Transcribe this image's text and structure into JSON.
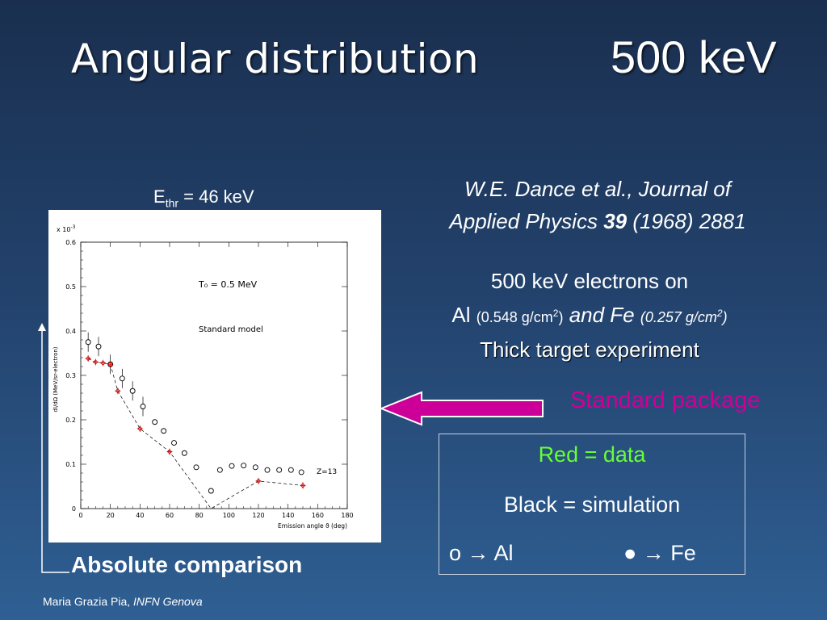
{
  "slide": {
    "title": "Angular distribution",
    "energy": "500 keV",
    "ethr_main": "E",
    "ethr_sub": "thr",
    "ethr_value": " = 46 keV",
    "ref_line1": "W.E. Dance et al., Journal of",
    "ref_line2_a": "Applied Physics ",
    "ref_line2_b": "39",
    "ref_line2_c": " (1968) 2881",
    "desc_line1": "500 keV electrons on",
    "desc_al": "Al ",
    "desc_al_density_a": "(0.548 g/cm",
    "desc_al_density_sup": "2",
    "desc_al_density_b": ")",
    "desc_and": " and Fe ",
    "desc_fe_density_a": "(0.257 g/cm",
    "desc_fe_density_sup": "2",
    "desc_fe_density_b": ")",
    "desc_line3": "Thick target experiment",
    "standard_package": "Standard package",
    "legend_red": "Red = data",
    "legend_black": "Black = simulation",
    "legend_al": "o → Al",
    "legend_fe": "● → Fe",
    "absolute": "Absolute comparison",
    "footer_name": "Maria Grazia Pia, ",
    "footer_org": "INFN Genova"
  },
  "colors": {
    "accent_magenta": "#cc0099",
    "legend_green": "#66ff33",
    "data_red": "#cc0000"
  },
  "chart_data": {
    "type": "scatter",
    "ylabel": "dI/dΩ (MeV/sr-electron)",
    "xlabel": "Emission angle ϑ (deg)",
    "y_multiplier": "x 10",
    "y_multiplier_exp": "-3",
    "annotation_t0": "T₀ = 0.5 MeV",
    "annotation_model": "Standard model",
    "annotation_z": "Z=13",
    "xlim": [
      0,
      180
    ],
    "ylim": [
      0,
      0.6
    ],
    "xticks": [
      "0",
      "20",
      "40",
      "60",
      "80",
      "100",
      "120",
      "140",
      "160",
      "180"
    ],
    "yticks": [
      "0",
      "0.1",
      "0.2",
      "0.3",
      "0.4",
      "0.5",
      "0.6"
    ],
    "series": [
      {
        "marker": "open-circle",
        "x": [
          5,
          12,
          20,
          28,
          35,
          42,
          50,
          56,
          63,
          70,
          78,
          88,
          94,
          102,
          110,
          118,
          126,
          134,
          142,
          149
        ],
        "y": [
          0.375,
          0.365,
          0.325,
          0.293,
          0.265,
          0.23,
          0.195,
          0.175,
          0.148,
          0.125,
          0.093,
          0.04,
          0.087,
          0.096,
          0.097,
          0.093,
          0.087,
          0.087,
          0.087,
          0.082
        ]
      },
      {
        "marker": "red-diamond",
        "x": [
          5,
          10,
          15,
          20,
          25,
          40,
          60,
          120,
          150
        ],
        "y": [
          0.338,
          0.33,
          0.328,
          0.325,
          0.265,
          0.18,
          0.128,
          0.062,
          0.052
        ]
      },
      {
        "marker": "dashed-line",
        "x": [
          5,
          10,
          15,
          20,
          25,
          40,
          60,
          88,
          120,
          150
        ],
        "y": [
          0.338,
          0.33,
          0.328,
          0.325,
          0.265,
          0.18,
          0.128,
          0.0,
          0.062,
          0.052
        ]
      }
    ]
  }
}
